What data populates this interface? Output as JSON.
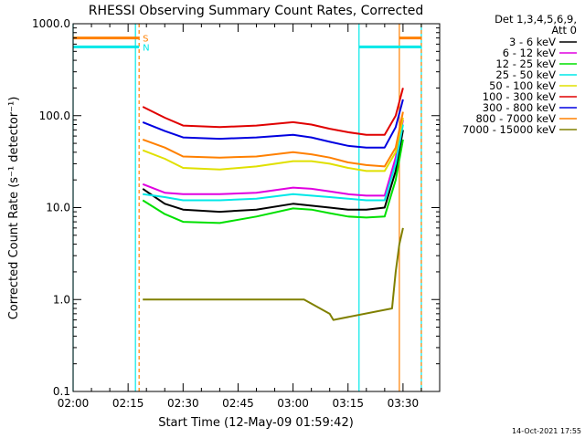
{
  "chart_data": {
    "type": "line",
    "title": "RHESSI Observing Summary Count Rates, Corrected",
    "xlabel": "Start Time (12-May-09 01:59:42)",
    "ylabel": "Corrected Count Rate (s⁻¹ detector⁻¹)",
    "y_scale": "log",
    "ylim": [
      0.1,
      1000
    ],
    "y_ticks": [
      {
        "value": 1000,
        "label": "1000.0"
      },
      {
        "value": 100,
        "label": "100.0"
      },
      {
        "value": 10,
        "label": "10.0"
      },
      {
        "value": 1,
        "label": "1.0"
      },
      {
        "value": 0.1,
        "label": "0.1"
      }
    ],
    "xlim": [
      "02:00",
      "03:40"
    ],
    "x_ticks": [
      "02:00",
      "02:15",
      "02:30",
      "02:45",
      "03:00",
      "03:15",
      "03:30"
    ],
    "grid": false,
    "legend": {
      "header": [
        "Det 1,3,4,5,6,9,",
        "Att 0"
      ],
      "placement": "top-right, outside"
    },
    "flags": [
      {
        "label": "S",
        "color": "#ff8000",
        "level": 700,
        "segments": [
          [
            "02:00",
            "02:18"
          ],
          [
            "03:29",
            "03:35"
          ]
        ]
      },
      {
        "label": "N",
        "color": "#00e8e8",
        "level": 560,
        "segments": [
          [
            "02:00",
            "02:18"
          ],
          [
            "03:18",
            "03:35"
          ]
        ]
      }
    ],
    "vertical_markers": [
      {
        "time": "02:00",
        "color": "#00e8e8",
        "style": "solid"
      },
      {
        "time": "02:17",
        "color": "#00e8e8",
        "style": "solid"
      },
      {
        "time": "02:18",
        "color": "#ff8000",
        "style": "dashed"
      },
      {
        "time": "03:18",
        "color": "#00e8e8",
        "style": "solid"
      },
      {
        "time": "03:29",
        "color": "#ff8000",
        "style": "solid"
      },
      {
        "time": "03:35",
        "color": "#00e8e8",
        "style": "solid"
      },
      {
        "time": "03:35",
        "color": "#ff8000",
        "style": "dashed"
      }
    ],
    "series": [
      {
        "name": "3 - 6 keV",
        "color": "#000000",
        "x": [
          "02:19",
          "02:25",
          "02:30",
          "02:40",
          "02:50",
          "03:00",
          "03:05",
          "03:10",
          "03:15",
          "03:20",
          "03:25",
          "03:28",
          "03:30"
        ],
        "y": [
          16,
          11,
          9.5,
          9,
          9.5,
          11,
          10.5,
          10,
          9.5,
          9.5,
          10,
          25,
          70
        ]
      },
      {
        "name": "6 - 12 keV",
        "color": "#e000e0",
        "x": [
          "02:19",
          "02:25",
          "02:30",
          "02:40",
          "02:50",
          "03:00",
          "03:05",
          "03:10",
          "03:15",
          "03:20",
          "03:25",
          "03:28",
          "03:30"
        ],
        "y": [
          18,
          14.5,
          14,
          14,
          14.5,
          16.5,
          16,
          15,
          14,
          13.5,
          13.5,
          35,
          90
        ]
      },
      {
        "name": "12 - 25 keV",
        "color": "#00e000",
        "x": [
          "02:19",
          "02:25",
          "02:30",
          "02:40",
          "02:50",
          "03:00",
          "03:05",
          "03:10",
          "03:15",
          "03:20",
          "03:25",
          "03:28",
          "03:30"
        ],
        "y": [
          12,
          8.5,
          7,
          6.8,
          8,
          9.8,
          9.5,
          8.7,
          8,
          7.8,
          8,
          20,
          55
        ]
      },
      {
        "name": "25 - 50 keV",
        "color": "#00e8e8",
        "x": [
          "02:19",
          "02:25",
          "02:30",
          "02:40",
          "02:50",
          "03:00",
          "03:05",
          "03:10",
          "03:15",
          "03:20",
          "03:25",
          "03:28",
          "03:30"
        ],
        "y": [
          14,
          13,
          12,
          12,
          12.5,
          14,
          13.5,
          13,
          12.5,
          12,
          12,
          30,
          80
        ]
      },
      {
        "name": "50 - 100 keV",
        "color": "#e0e000",
        "x": [
          "02:19",
          "02:25",
          "02:30",
          "02:40",
          "02:50",
          "03:00",
          "03:05",
          "03:10",
          "03:15",
          "03:20",
          "03:25",
          "03:28",
          "03:30"
        ],
        "y": [
          42,
          34,
          27,
          26,
          28,
          32,
          32,
          30,
          27,
          25,
          25,
          40,
          95
        ]
      },
      {
        "name": "100 - 300 keV",
        "color": "#e00000",
        "x": [
          "02:19",
          "02:25",
          "02:30",
          "02:40",
          "02:50",
          "03:00",
          "03:05",
          "03:10",
          "03:15",
          "03:20",
          "03:25",
          "03:28",
          "03:30"
        ],
        "y": [
          125,
          95,
          78,
          75,
          78,
          85,
          80,
          72,
          66,
          62,
          62,
          100,
          200
        ]
      },
      {
        "name": "300 - 800 keV",
        "color": "#0000e0",
        "x": [
          "02:19",
          "02:25",
          "02:30",
          "02:40",
          "02:50",
          "03:00",
          "03:05",
          "03:10",
          "03:15",
          "03:20",
          "03:25",
          "03:28",
          "03:30"
        ],
        "y": [
          85,
          68,
          58,
          56,
          58,
          62,
          58,
          52,
          47,
          45,
          45,
          75,
          150
        ]
      },
      {
        "name": "800 - 7000 keV",
        "color": "#ff8000",
        "x": [
          "02:19",
          "02:25",
          "02:30",
          "02:40",
          "02:50",
          "03:00",
          "03:05",
          "03:10",
          "03:15",
          "03:20",
          "03:25",
          "03:28",
          "03:30"
        ],
        "y": [
          55,
          45,
          36,
          35,
          36,
          40,
          38,
          35,
          31,
          29,
          28,
          45,
          110
        ]
      },
      {
        "name": "7000 - 15000 keV",
        "color": "#808000",
        "x": [
          "02:19",
          "02:21",
          "02:50",
          "02:53",
          "03:00",
          "03:03",
          "03:10",
          "03:11",
          "03:27",
          "03:28",
          "03:29",
          "03:30"
        ],
        "y": [
          1,
          1,
          1,
          1,
          1,
          1,
          0.7,
          0.6,
          0.8,
          2,
          4,
          6
        ]
      }
    ]
  },
  "timestamp": "14-Oct-2021 17:55"
}
